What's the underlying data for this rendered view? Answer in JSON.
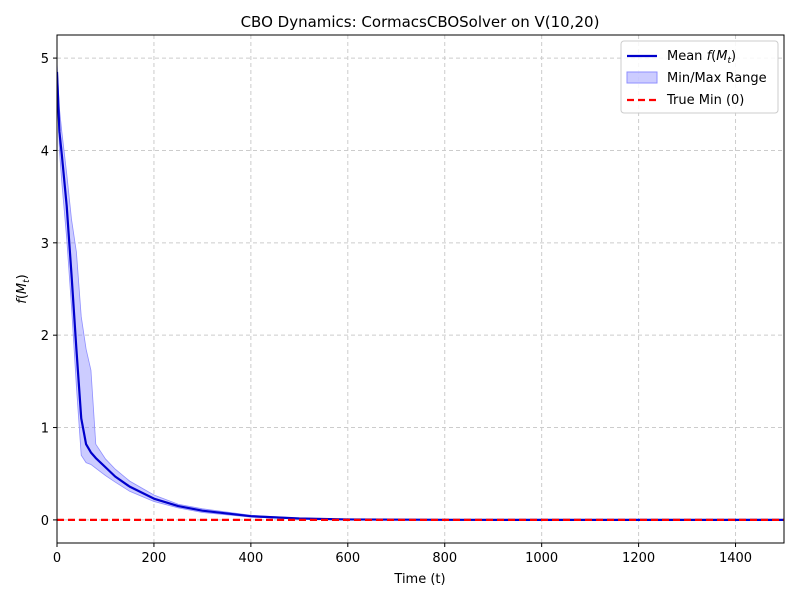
{
  "chart_data": {
    "type": "line",
    "title": "CBO Dynamics: CormacsCBOSolver on V(10,20)",
    "xlabel": "Time (t)",
    "ylabel": "f(M_t)",
    "xlim": [
      0,
      1500
    ],
    "ylim": [
      -0.25,
      5.25
    ],
    "x_ticks": [
      0,
      200,
      400,
      600,
      800,
      1000,
      1200,
      1400
    ],
    "y_ticks": [
      0,
      1,
      2,
      3,
      4,
      5
    ],
    "grid": true,
    "legend_position": "top-right",
    "series": [
      {
        "name": "Mean f(M_t)",
        "kind": "line",
        "color": "#0000cc",
        "x": [
          0,
          5,
          10,
          20,
          30,
          40,
          50,
          60,
          70,
          80,
          100,
          120,
          150,
          200,
          250,
          300,
          400,
          500,
          600,
          800,
          1000,
          1200,
          1500
        ],
        "y": [
          4.85,
          4.2,
          3.95,
          3.4,
          2.65,
          1.85,
          1.1,
          0.82,
          0.73,
          0.67,
          0.57,
          0.47,
          0.36,
          0.23,
          0.15,
          0.1,
          0.04,
          0.015,
          0.005,
          0.001,
          0.0,
          0.0,
          0.0
        ]
      },
      {
        "name": "Min/Max Range",
        "kind": "band",
        "color": "#8f8fff",
        "x": [
          0,
          5,
          10,
          20,
          30,
          40,
          50,
          60,
          70,
          80,
          100,
          120,
          150,
          200,
          250,
          300,
          400,
          500,
          600,
          800,
          1000,
          1200,
          1500
        ],
        "lower": [
          4.8,
          4.0,
          3.65,
          3.05,
          2.3,
          1.45,
          0.7,
          0.62,
          0.6,
          0.56,
          0.48,
          0.41,
          0.31,
          0.2,
          0.13,
          0.08,
          0.03,
          0.01,
          0.003,
          0.0,
          0.0,
          0.0,
          0.0
        ],
        "upper": [
          4.95,
          4.45,
          4.2,
          3.75,
          3.25,
          2.9,
          2.2,
          1.85,
          1.62,
          0.82,
          0.66,
          0.55,
          0.42,
          0.27,
          0.17,
          0.12,
          0.05,
          0.02,
          0.008,
          0.002,
          0.001,
          0.0,
          0.0
        ]
      },
      {
        "name": "True Min (0)",
        "kind": "hline",
        "color": "#ff0000",
        "y": 0
      }
    ]
  }
}
